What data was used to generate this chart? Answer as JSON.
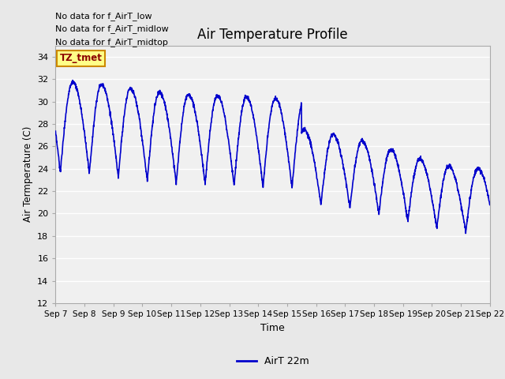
{
  "title": "Air Temperature Profile",
  "xlabel": "Time",
  "ylabel": "Air Termperature (C)",
  "ylim": [
    12,
    35
  ],
  "yticks": [
    12,
    14,
    16,
    18,
    20,
    22,
    24,
    26,
    28,
    30,
    32,
    34
  ],
  "line_color": "#0000CC",
  "line_width": 1.2,
  "fig_bg_color": "#E8E8E8",
  "plot_bg_color": "#F0F0F0",
  "grid_color": "#CCCCCC",
  "legend_label": "AirT 22m",
  "no_data_texts": [
    "No data for f_AirT_low",
    "No data for f_AirT_midlow",
    "No data for f_AirT_midtop"
  ],
  "tz_tmet_text": "TZ_tmet",
  "x_tick_labels": [
    "Sep 7",
    "Sep 8",
    "Sep 9",
    "Sep 10",
    "Sep 11",
    "Sep 12",
    "Sep 13",
    "Sep 14",
    "Sep 15",
    "Sep 16",
    "Sep 17",
    "Sep 18",
    "Sep 19",
    "Sep 20",
    "Sep 21",
    "Sep 22"
  ]
}
